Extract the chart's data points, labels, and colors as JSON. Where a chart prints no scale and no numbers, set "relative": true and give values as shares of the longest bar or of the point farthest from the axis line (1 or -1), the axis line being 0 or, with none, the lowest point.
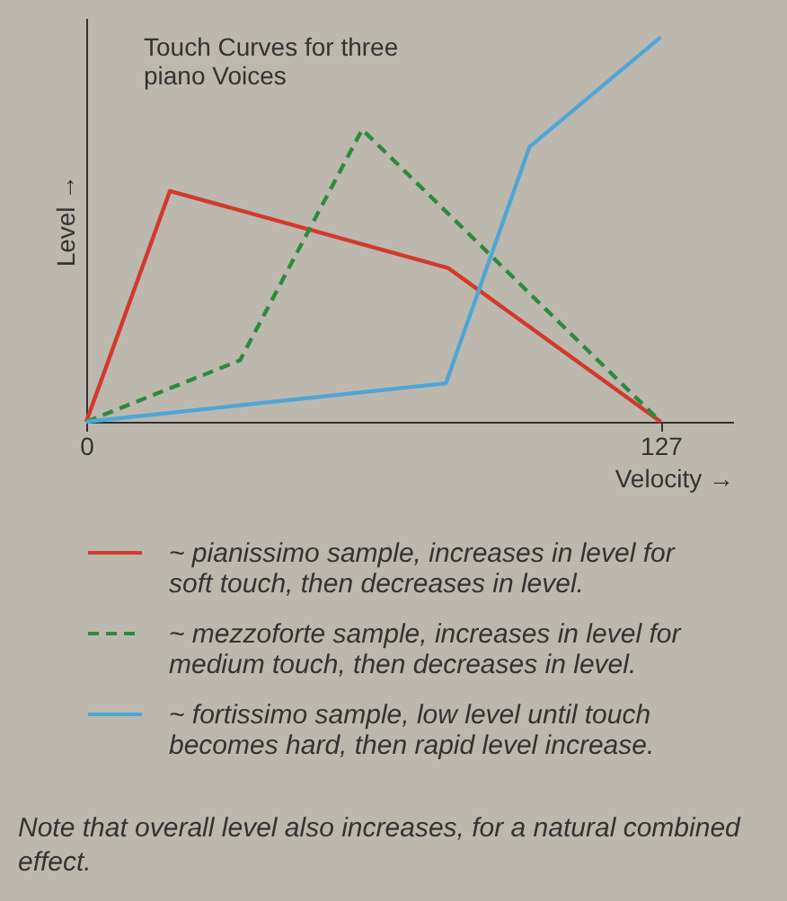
{
  "chart_data": {
    "type": "line",
    "title": "Touch Curves for three piano Voices",
    "xlabel": "Velocity →",
    "ylabel": "Level →",
    "relative": true,
    "xlim": [
      0,
      143
    ],
    "xticks": [
      0,
      127
    ],
    "legend": "bottom",
    "grid": false,
    "marker": "none",
    "series": [
      {
        "name": "~ pianissimo sample, increases in level for soft touch, then decreases in level.",
        "color": "#d23a2c",
        "line_style": "solid",
        "x": [
          0,
          18.5,
          80,
          127
        ],
        "values": [
          0,
          0.6,
          0.4,
          0
        ]
      },
      {
        "name": "~ mezzoforte sample, increases in level for medium touch, then decreases in level.",
        "color": "#2e8a3c",
        "line_style": "dashed",
        "x": [
          0,
          34,
          61,
          127
        ],
        "values": [
          0,
          0.16,
          0.76,
          0
        ]
      },
      {
        "name": "~ fortissimo sample, low level until touch becomes hard, then rapid level increase.",
        "color": "#4fa6d6",
        "line_style": "solid",
        "x": [
          0,
          79.5,
          98,
          127
        ],
        "values": [
          0,
          0.1,
          0.715,
          1
        ]
      }
    ],
    "annotations": [
      "Note that overall level also increases, for a natural combined effect."
    ]
  }
}
